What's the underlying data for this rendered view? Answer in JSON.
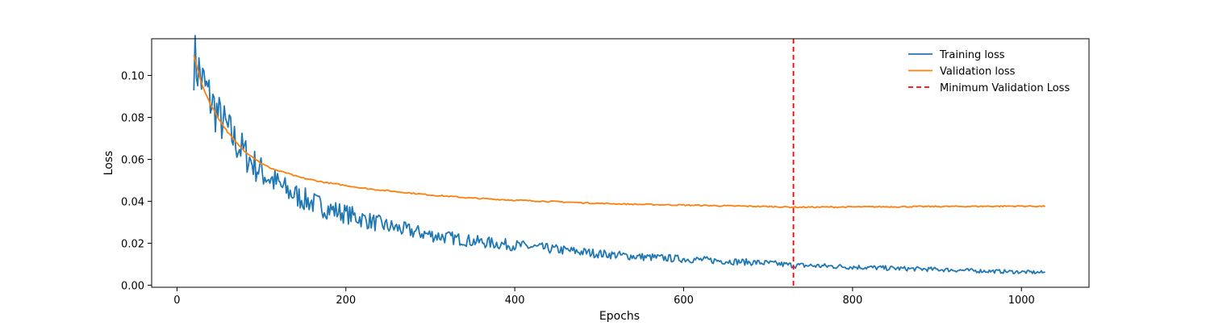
{
  "chart_data": {
    "type": "line",
    "title": "",
    "xlabel": "Epochs",
    "ylabel": "Loss",
    "xlim": [
      -30,
      1080
    ],
    "ylim": [
      -0.001,
      0.1175
    ],
    "xticks": [
      0,
      200,
      400,
      600,
      800,
      1000
    ],
    "yticks": [
      0.0,
      0.02,
      0.04,
      0.06,
      0.08,
      0.1
    ],
    "xtick_labels": [
      "0",
      "200",
      "400",
      "600",
      "800",
      "1000"
    ],
    "ytick_labels": [
      "0.00",
      "0.02",
      "0.04",
      "0.06",
      "0.08",
      "0.10"
    ],
    "grid": false,
    "legend_position": "top-right",
    "legend": [
      "Training loss",
      "Validation loss",
      "Minimum Validation Loss"
    ],
    "series": [
      {
        "name": "Training loss",
        "color": "#1f77b4",
        "x": [
          20,
          25,
          30,
          40,
          50,
          60,
          70,
          80,
          90,
          100,
          110,
          120,
          130,
          140,
          150,
          175,
          200,
          225,
          250,
          275,
          300,
          350,
          400,
          450,
          500,
          550,
          600,
          650,
          700,
          730,
          750,
          800,
          850,
          900,
          950,
          1000,
          1028
        ],
        "values": [
          0.108,
          0.103,
          0.097,
          0.088,
          0.08,
          0.074,
          0.068,
          0.063,
          0.058,
          0.054,
          0.051,
          0.048,
          0.045,
          0.043,
          0.041,
          0.037,
          0.034,
          0.031,
          0.028,
          0.026,
          0.024,
          0.021,
          0.019,
          0.017,
          0.015,
          0.0135,
          0.0125,
          0.0115,
          0.0105,
          0.0095,
          0.0093,
          0.0087,
          0.008,
          0.0075,
          0.0068,
          0.0063,
          0.006
        ]
      },
      {
        "name": "Validation loss",
        "color": "#ff7f0e",
        "x": [
          20,
          25,
          30,
          40,
          50,
          60,
          70,
          80,
          90,
          100,
          110,
          120,
          130,
          140,
          150,
          175,
          200,
          225,
          250,
          275,
          300,
          350,
          400,
          450,
          500,
          550,
          600,
          650,
          700,
          730,
          750,
          800,
          850,
          900,
          950,
          1000,
          1028
        ],
        "values": [
          0.11,
          0.102,
          0.095,
          0.086,
          0.079,
          0.073,
          0.068,
          0.064,
          0.061,
          0.058,
          0.056,
          0.0545,
          0.0535,
          0.052,
          0.051,
          0.049,
          0.0475,
          0.046,
          0.045,
          0.044,
          0.043,
          0.0415,
          0.0405,
          0.0398,
          0.039,
          0.0385,
          0.0382,
          0.0378,
          0.0375,
          0.0372,
          0.0372,
          0.0373,
          0.0374,
          0.0375,
          0.0376,
          0.0377,
          0.0376
        ]
      }
    ],
    "vline": {
      "name": "Minimum Validation Loss",
      "x": 730,
      "color": "#ff0000"
    }
  }
}
